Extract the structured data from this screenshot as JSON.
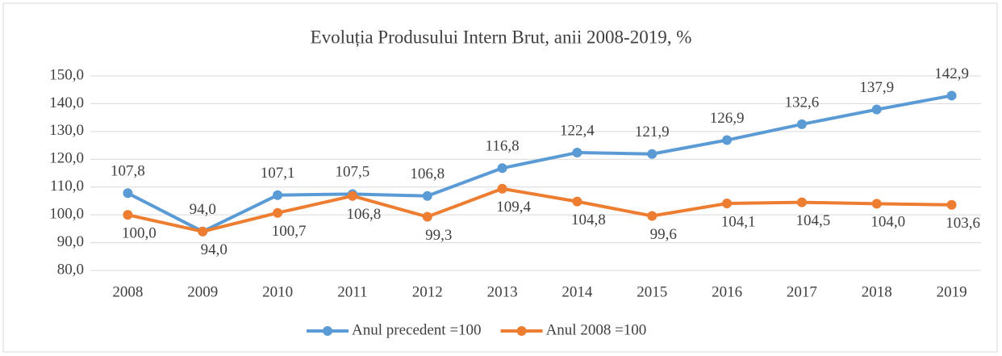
{
  "chart_data": {
    "type": "line",
    "title": "Evoluția Produsului Intern Brut, anii 2008-2019,  %",
    "categories": [
      "2008",
      "2009",
      "2010",
      "2011",
      "2012",
      "2013",
      "2014",
      "2015",
      "2016",
      "2017",
      "2018",
      "2019"
    ],
    "series": [
      {
        "name": "Anul precedent =100",
        "color": "#5b9bd5",
        "values": [
          107.8,
          94.0,
          107.1,
          107.5,
          106.8,
          116.8,
          122.4,
          121.9,
          126.9,
          132.6,
          137.9,
          142.9
        ],
        "value_labels": [
          "107,8",
          "94,0",
          "107,1",
          "107,5",
          "106,8",
          "116,8",
          "122,4",
          "121,9",
          "126,9",
          "132,6",
          "137,9",
          "142,9"
        ]
      },
      {
        "name": "Anul 2008 =100",
        "color": "#ed7d31",
        "values": [
          100.0,
          94.0,
          100.7,
          106.8,
          99.3,
          109.4,
          104.8,
          99.6,
          104.1,
          104.5,
          104.0,
          103.6
        ],
        "value_labels": [
          "100,0",
          "94,0",
          "100,7",
          "106,8",
          "99,3",
          "109,4",
          "104,8",
          "99,6",
          "104,1",
          "104,5",
          "104,0",
          "103,6"
        ]
      }
    ],
    "ylim": [
      80,
      150
    ],
    "yticks": [
      {
        "value": 80,
        "label": "80,0"
      },
      {
        "value": 90,
        "label": "90,0"
      },
      {
        "value": 100,
        "label": "100,0"
      },
      {
        "value": 110,
        "label": "110,0"
      },
      {
        "value": 120,
        "label": "120,0"
      },
      {
        "value": 130,
        "label": "130,0"
      },
      {
        "value": 140,
        "label": "140,0"
      },
      {
        "value": 150,
        "label": "150,0"
      }
    ],
    "grid": true,
    "legend": "bottom"
  }
}
